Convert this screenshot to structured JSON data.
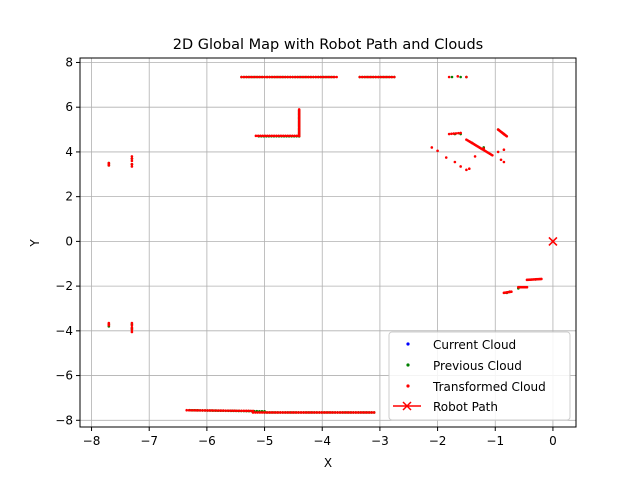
{
  "chart_data": {
    "type": "scatter",
    "title": "2D Global Map with Robot Path and Clouds",
    "xlabel": "X",
    "ylabel": "Y",
    "xlim": [
      -8.2,
      0.4
    ],
    "ylim": [
      -8.3,
      8.2
    ],
    "xticks": [
      -8,
      -7,
      -6,
      -5,
      -4,
      -3,
      -2,
      -1,
      0
    ],
    "yticks": [
      -8,
      -6,
      -4,
      -2,
      0,
      2,
      4,
      6,
      8
    ],
    "xtick_labels": [
      "−8",
      "−7",
      "−6",
      "−5",
      "−4",
      "−3",
      "−2",
      "−1",
      "0"
    ],
    "ytick_labels": [
      "−8",
      "−6",
      "−4",
      "−2",
      "0",
      "2",
      "4",
      "6",
      "8"
    ],
    "grid": true,
    "legend_position": "lower-right",
    "series": [
      {
        "name": "Current Cloud",
        "color": "#0000ff",
        "marker": "dot",
        "segments": [],
        "points": []
      },
      {
        "name": "Previous Cloud",
        "color": "#008000",
        "marker": "dot",
        "segments": [
          {
            "from": [
              -5.4,
              7.35
            ],
            "to": [
              -3.8,
              7.35
            ],
            "step": 0.045
          },
          {
            "from": [
              -3.35,
              7.35
            ],
            "to": [
              -2.75,
              7.35
            ],
            "step": 0.045
          },
          {
            "from": [
              -5.1,
              4.7
            ],
            "to": [
              -4.4,
              4.7
            ],
            "step": 0.045
          },
          {
            "from": [
              -4.4,
              4.7
            ],
            "to": [
              -4.4,
              5.85
            ],
            "step": 0.06
          },
          {
            "from": [
              -6.3,
              -7.55
            ],
            "to": [
              -5.0,
              -7.6
            ],
            "step": 0.045
          },
          {
            "from": [
              -5.0,
              -7.65
            ],
            "to": [
              -3.1,
              -7.65
            ],
            "step": 0.045
          }
        ],
        "points": [
          [
            -1.75,
            7.35
          ],
          [
            -1.6,
            7.35
          ],
          [
            -1.5,
            7.35
          ],
          [
            -7.7,
            3.4
          ],
          [
            -7.7,
            3.5
          ],
          [
            -7.3,
            3.45
          ],
          [
            -7.3,
            3.7
          ],
          [
            -7.7,
            -3.7
          ],
          [
            -7.7,
            -3.8
          ],
          [
            -7.3,
            -3.7
          ],
          [
            -7.3,
            -3.9
          ],
          [
            -1.7,
            4.8
          ],
          [
            -1.6,
            4.8
          ],
          [
            -1.4,
            4.4
          ],
          [
            -1.2,
            4.2
          ],
          [
            -0.95,
            5.0
          ],
          [
            -0.85,
            4.8
          ],
          [
            -0.8,
            -2.3
          ],
          [
            -0.75,
            -2.25
          ],
          [
            -0.6,
            -2.1
          ],
          [
            -0.3,
            -1.7
          ]
        ]
      },
      {
        "name": "Transformed Cloud",
        "color": "#ff0000",
        "marker": "dot",
        "segments": [
          {
            "from": [
              -5.4,
              7.35
            ],
            "to": [
              -3.75,
              7.35
            ],
            "step": 0.04
          },
          {
            "from": [
              -3.35,
              7.35
            ],
            "to": [
              -2.75,
              7.35
            ],
            "step": 0.04
          },
          {
            "from": [
              -5.15,
              4.72
            ],
            "to": [
              -4.4,
              4.72
            ],
            "step": 0.04
          },
          {
            "from": [
              -4.4,
              4.72
            ],
            "to": [
              -4.4,
              5.9
            ],
            "step": 0.05
          },
          {
            "from": [
              -6.35,
              -7.55
            ],
            "to": [
              -5.2,
              -7.58
            ],
            "step": 0.04
          },
          {
            "from": [
              -5.2,
              -7.65
            ],
            "to": [
              -3.1,
              -7.65
            ],
            "step": 0.04
          },
          {
            "from": [
              -1.8,
              4.8
            ],
            "to": [
              -1.6,
              4.85
            ],
            "step": 0.04
          },
          {
            "from": [
              -1.5,
              4.55
            ],
            "to": [
              -1.05,
              3.85
            ],
            "step": 0.04
          },
          {
            "from": [
              -0.95,
              5.0
            ],
            "to": [
              -0.8,
              4.7
            ],
            "step": 0.03
          },
          {
            "from": [
              -0.85,
              -2.3
            ],
            "to": [
              -0.72,
              -2.25
            ],
            "step": 0.02
          },
          {
            "from": [
              -0.6,
              -2.05
            ],
            "to": [
              -0.45,
              -2.05
            ],
            "step": 0.02
          },
          {
            "from": [
              -0.45,
              -1.72
            ],
            "to": [
              -0.2,
              -1.68
            ],
            "step": 0.02
          }
        ],
        "points": [
          [
            -1.8,
            7.35
          ],
          [
            -1.65,
            7.38
          ],
          [
            -1.5,
            7.35
          ],
          [
            -7.7,
            3.4
          ],
          [
            -7.7,
            3.5
          ],
          [
            -7.7,
            3.45
          ],
          [
            -7.3,
            3.35
          ],
          [
            -7.3,
            3.45
          ],
          [
            -7.3,
            3.6
          ],
          [
            -7.3,
            3.7
          ],
          [
            -7.3,
            3.8
          ],
          [
            -7.7,
            -3.65
          ],
          [
            -7.7,
            -3.75
          ],
          [
            -7.7,
            -3.7
          ],
          [
            -7.3,
            -3.65
          ],
          [
            -7.3,
            -3.75
          ],
          [
            -7.3,
            -3.85
          ],
          [
            -7.3,
            -3.95
          ],
          [
            -7.3,
            -4.05
          ],
          [
            -2.1,
            4.2
          ],
          [
            -2.0,
            4.05
          ],
          [
            -1.85,
            3.75
          ],
          [
            -1.7,
            3.55
          ],
          [
            -1.6,
            3.35
          ],
          [
            -1.5,
            3.2
          ],
          [
            -1.45,
            3.25
          ],
          [
            -1.35,
            3.8
          ],
          [
            -1.2,
            4.15
          ],
          [
            -0.9,
            3.65
          ],
          [
            -0.85,
            3.55
          ],
          [
            -0.95,
            4.0
          ],
          [
            -0.85,
            4.1
          ]
        ]
      }
    ],
    "robot_path": {
      "name": "Robot Path",
      "color": "#ff0000",
      "marker": "x",
      "points": [
        [
          0,
          0
        ]
      ]
    }
  }
}
